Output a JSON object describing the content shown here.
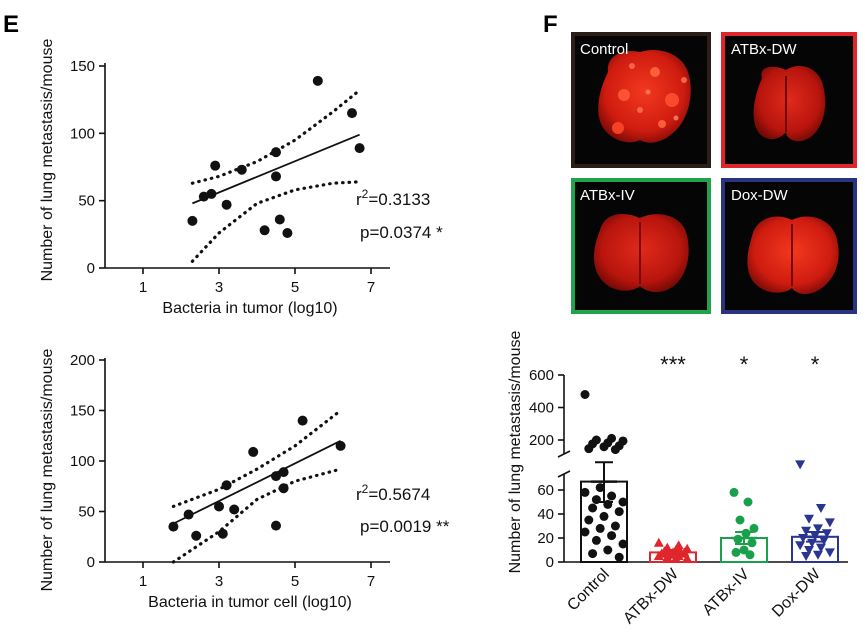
{
  "panels": {
    "e_letter": "E",
    "f_letter": "F"
  },
  "scatter_1": {
    "stat_r_prefix": "r",
    "stat_r_sup": "2",
    "stat_r_value": "=0.3133",
    "stat_p": "p=0.0374 *"
  },
  "scatter_2": {
    "stat_r_prefix": "r",
    "stat_r_sup": "2",
    "stat_r_value": "=0.5674",
    "stat_p": "p=0.0019 **"
  },
  "photos": [
    {
      "label": "Control",
      "border_color": "#2b1d18"
    },
    {
      "label": "ATBx-DW",
      "border_color": "#e0262d"
    },
    {
      "label": "ATBx-IV",
      "border_color": "#22a24a"
    },
    {
      "label": "Dox-DW",
      "border_color": "#29337f"
    }
  ],
  "colors": {
    "Control": "#111111",
    "ATBx-DW": "#e0262d",
    "ATBx-IV": "#1aa04a",
    "Dox-DW": "#2a3590",
    "tissue": "#d21a12",
    "tissue_dark": "#8a0d08",
    "photo_bg": "#050505"
  },
  "chart_data": [
    {
      "type": "scatter",
      "title": "",
      "xlabel": "Bacteria in tumor (log10)",
      "ylabel": "Number of lung metastasis/mouse",
      "xlim": [
        0,
        7.5
      ],
      "ylim": [
        0,
        150
      ],
      "xticks": [
        1,
        3,
        5,
        7
      ],
      "yticks": [
        0,
        50,
        100,
        150
      ],
      "points": [
        [
          2.3,
          35
        ],
        [
          2.6,
          53
        ],
        [
          2.8,
          55
        ],
        [
          2.9,
          76
        ],
        [
          3.2,
          47
        ],
        [
          3.6,
          73
        ],
        [
          4.2,
          28
        ],
        [
          4.5,
          86
        ],
        [
          4.5,
          68
        ],
        [
          4.6,
          36
        ],
        [
          4.8,
          26
        ],
        [
          5.6,
          139
        ],
        [
          6.5,
          115
        ],
        [
          6.7,
          89
        ]
      ],
      "fit_line": [
        [
          2.3,
          48
        ],
        [
          6.7,
          99
        ]
      ],
      "ci_upper": [
        [
          2.3,
          63
        ],
        [
          3.0,
          68
        ],
        [
          4.0,
          79
        ],
        [
          5.0,
          95
        ],
        [
          6.0,
          116
        ],
        [
          6.7,
          132
        ]
      ],
      "ci_lower": [
        [
          2.3,
          5
        ],
        [
          3.0,
          26
        ],
        [
          4.0,
          48
        ],
        [
          5.0,
          58
        ],
        [
          6.0,
          63
        ],
        [
          6.7,
          64
        ]
      ],
      "r2": 0.3133,
      "p": 0.0374
    },
    {
      "type": "scatter",
      "title": "",
      "xlabel": "Bacteria in tumor cell (log10)",
      "ylabel": "Number of lung metastasis/mouse",
      "xlim": [
        0,
        7.5
      ],
      "ylim": [
        0,
        200
      ],
      "xticks": [
        1,
        3,
        5,
        7
      ],
      "yticks": [
        0,
        50,
        100,
        150,
        200
      ],
      "points": [
        [
          1.8,
          35
        ],
        [
          2.2,
          47
        ],
        [
          2.4,
          26
        ],
        [
          3.0,
          55
        ],
        [
          3.1,
          28
        ],
        [
          3.2,
          76
        ],
        [
          3.4,
          52
        ],
        [
          3.9,
          109
        ],
        [
          4.5,
          36
        ],
        [
          4.5,
          85
        ],
        [
          4.7,
          73
        ],
        [
          4.7,
          89
        ],
        [
          5.2,
          140
        ],
        [
          6.2,
          115
        ]
      ],
      "fit_line": [
        [
          1.8,
          38
        ],
        [
          6.2,
          120
        ]
      ],
      "ci_upper": [
        [
          1.8,
          55
        ],
        [
          3.0,
          72
        ],
        [
          4.0,
          92
        ],
        [
          5.0,
          115
        ],
        [
          6.2,
          150
        ]
      ],
      "ci_lower": [
        [
          1.8,
          0
        ],
        [
          3.0,
          30
        ],
        [
          4.0,
          62
        ],
        [
          5.0,
          80
        ],
        [
          6.2,
          92
        ]
      ],
      "r2": 0.5674,
      "p": 0.0019
    },
    {
      "type": "bar",
      "title": "",
      "xlabel": "",
      "ylabel": "Number of lung metastasis/mouse",
      "categories": [
        "Control",
        "ATBx-DW",
        "ATBx-IV",
        "Dox-DW"
      ],
      "values": [
        67,
        8,
        20,
        21
      ],
      "sem": [
        17,
        2,
        5,
        4
      ],
      "significance": [
        "",
        "***",
        "*",
        "*"
      ],
      "y_axis_broken": true,
      "ylim_lower": [
        0,
        70
      ],
      "yticks_lower": [
        0,
        20,
        40,
        60
      ],
      "ylim_upper": [
        150,
        600
      ],
      "yticks_upper": [
        200,
        400,
        600
      ],
      "points": [
        [
          480,
          210,
          200,
          195,
          185,
          180,
          170,
          165,
          155,
          150,
          62,
          58,
          55,
          52,
          50,
          48,
          45,
          42,
          38,
          35,
          30,
          28,
          25,
          22,
          18,
          15,
          10,
          7,
          4
        ],
        [
          16,
          14,
          12,
          11,
          10,
          9,
          8,
          8,
          7,
          7,
          6,
          5,
          5,
          4,
          3,
          3
        ],
        [
          58,
          50,
          35,
          28,
          24,
          19,
          16,
          10,
          8,
          6
        ],
        [
          73,
          45,
          36,
          33,
          28,
          26,
          24,
          22,
          20,
          18,
          16,
          14,
          12,
          10,
          8,
          6,
          5
        ]
      ]
    }
  ]
}
